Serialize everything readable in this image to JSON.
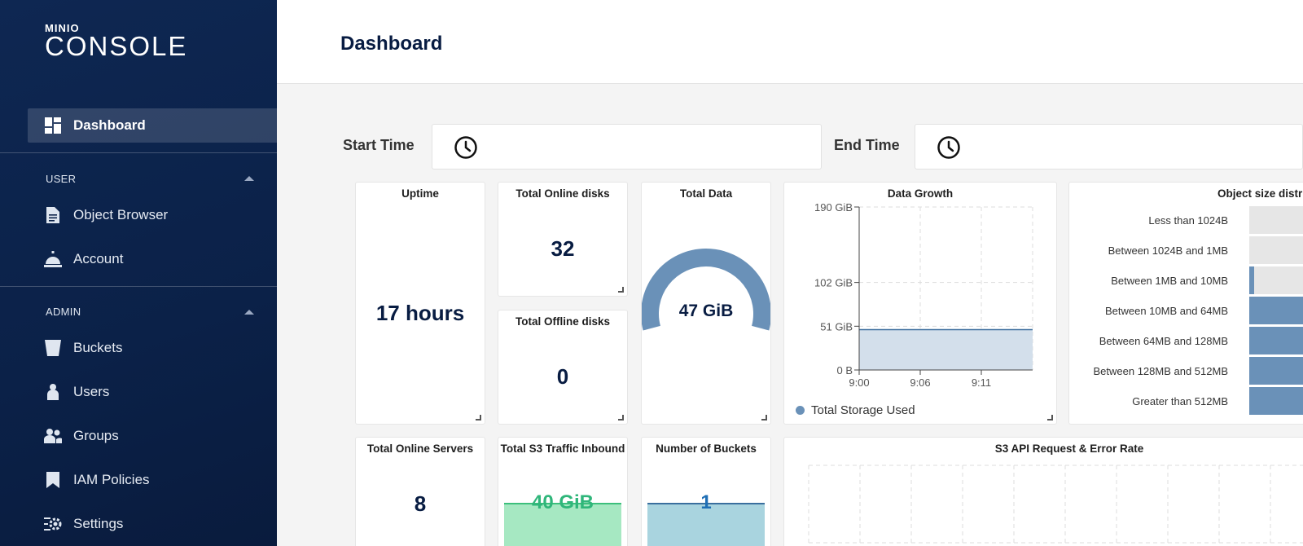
{
  "sidebar": {
    "logo_top": "MINIO",
    "logo_bottom": "CONSOLE",
    "items": {
      "dashboard": "Dashboard",
      "object_browser": "Object Browser",
      "account": "Account",
      "buckets": "Buckets",
      "users": "Users",
      "groups": "Groups",
      "iam_policies": "IAM Policies",
      "settings": "Settings"
    },
    "sections": {
      "user": "USER",
      "admin": "ADMIN"
    }
  },
  "header": {
    "title": "Dashboard"
  },
  "time": {
    "start_label": "Start Time",
    "end_label": "End Time"
  },
  "cards": {
    "uptime": {
      "title": "Uptime",
      "value": "17 hours"
    },
    "online_disks": {
      "title": "Total Online disks",
      "value": "32"
    },
    "offline_disks": {
      "title": "Total Offline disks",
      "value": "0"
    },
    "total_data": {
      "title": "Total Data",
      "value": "47 GiB",
      "gauge_fraction": 0.25
    },
    "online_servers": {
      "title": "Total Online Servers",
      "value": "8"
    },
    "s3_inbound": {
      "title": "Total S3 Traffic Inbound",
      "value": "40 GiB",
      "color": "#2fb67a"
    },
    "buckets": {
      "title": "Number of Buckets",
      "value": "1",
      "color": "#1f6fb5"
    },
    "s3_api": {
      "title": "S3 API Request & Error Rate"
    },
    "object_size": {
      "title": "Object size distri",
      "rows": [
        {
          "label": "Less than 1024B",
          "fraction": 0.0
        },
        {
          "label": "Between 1024B and 1MB",
          "fraction": 0.0
        },
        {
          "label": "Between 1MB and 10MB",
          "fraction": 0.08
        },
        {
          "label": "Between 10MB and 64MB",
          "fraction": 1.0
        },
        {
          "label": "Between 64MB and 128MB",
          "fraction": 1.0
        },
        {
          "label": "Between 128MB and 512MB",
          "fraction": 1.0
        },
        {
          "label": "Greater than 512MB",
          "fraction": 1.0
        }
      ]
    }
  },
  "chart_data": [
    {
      "type": "area",
      "title": "Data Growth",
      "x_ticks": [
        "9:00",
        "9:06",
        "9:11"
      ],
      "y_ticks": [
        "0 B",
        "51 GiB",
        "102 GiB",
        "190 GiB"
      ],
      "y_tick_values": [
        0,
        51,
        102,
        190
      ],
      "ylim": [
        0,
        190
      ],
      "grid": true,
      "series": [
        {
          "name": "Total Storage Used",
          "values": [
            47,
            47,
            47,
            47
          ],
          "color": "#6a91b8"
        }
      ]
    }
  ],
  "colors": {
    "accent": "#6a91b8",
    "sidebar": "#0b2148"
  }
}
